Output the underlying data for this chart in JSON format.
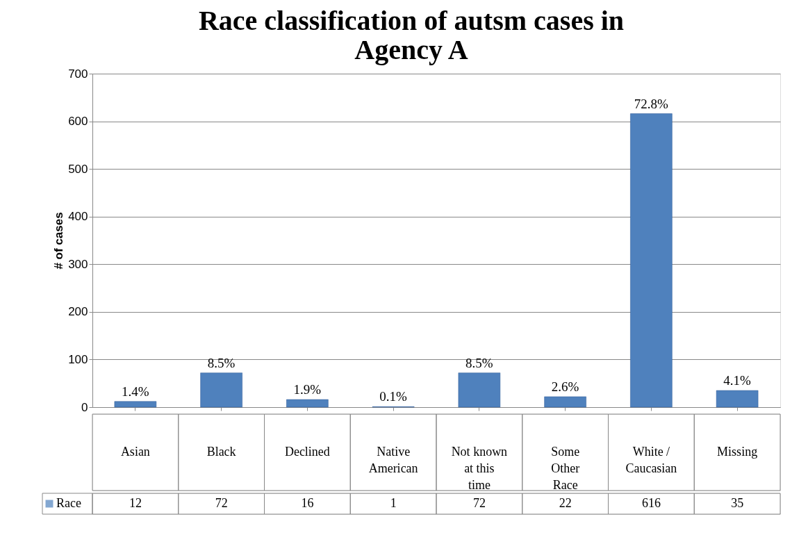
{
  "chart_data": {
    "type": "bar",
    "title": "Race classification of autsm cases in Agency A",
    "ylabel": "# of cases",
    "categories": [
      "Asian",
      "Black",
      "Declined",
      "Native American",
      "Not known at this time",
      "Some Other Race",
      "White / Caucasian",
      "Missing"
    ],
    "series": [
      {
        "name": "Race",
        "color": "#4f81bd",
        "values": [
          12,
          72,
          16,
          1,
          72,
          22,
          616,
          35
        ],
        "value_labels": [
          "12",
          "72",
          "16",
          "1",
          "72",
          "22",
          "616",
          "35"
        ]
      }
    ],
    "annotations": [
      {
        "text": "1.4%",
        "x": "Asian",
        "y": 12
      },
      {
        "text": "8.5%",
        "x": "Black",
        "y": 72
      },
      {
        "text": "1.9%",
        "x": "Declined",
        "y": 16
      },
      {
        "text": "0.1%",
        "x": "Native American",
        "y": 1
      },
      {
        "text": "8.5%",
        "x": "Not known at this time",
        "y": 72
      },
      {
        "text": "2.6%",
        "x": "Some Other Race",
        "y": 22
      },
      {
        "text": "72.8%",
        "x": "White / Caucasian",
        "y": 616
      },
      {
        "text": "4.1%",
        "x": "Missing",
        "y": 35
      }
    ],
    "ylim": [
      0,
      700
    ],
    "yticks": [
      0,
      100,
      200,
      300,
      400,
      500,
      600,
      700
    ],
    "grid": "y",
    "legend": "bottom left"
  }
}
